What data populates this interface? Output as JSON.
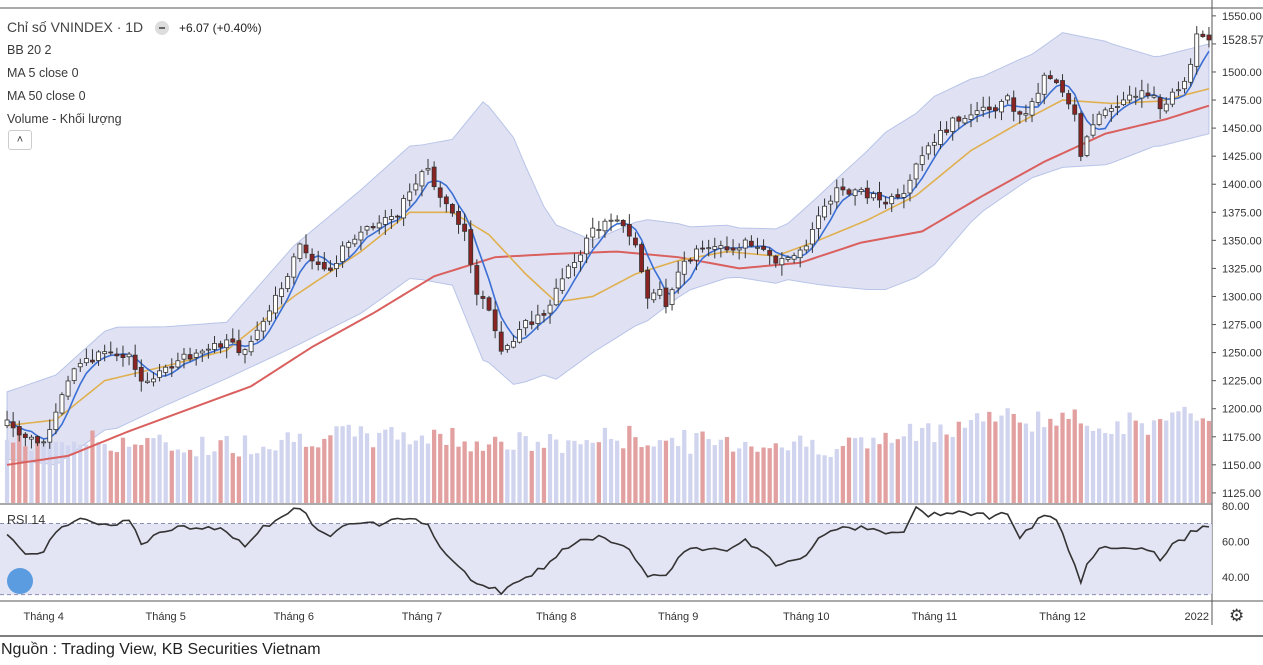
{
  "header": {
    "title": "Chỉ số VNINDEX · 1D",
    "change": "+6.07 (+0.40%)",
    "legend_items": [
      "BB 20 2",
      "MA 5 close 0",
      "MA 50 close 0",
      "Volume - Khối lượng"
    ],
    "rsi_label": "RSI 14",
    "source": "Nguồn : Trading View, KB Securities Vietnam"
  },
  "colors": {
    "up_candle": "#ffffff",
    "down_candle": "#8b2323",
    "candle_border": "#333333",
    "ma5": "#3b6fd4",
    "ma20": "#e0b050",
    "ma50": "#d9605e",
    "bb_fill": "#d6d8ef",
    "bb_line": "#b8c4e8",
    "vol_up": "#d0d4ee",
    "vol_down": "#e2a0a0",
    "rsi_line": "#333333",
    "rsi_fill": "#dfe0f2"
  },
  "icons": [
    "chevron-up-icon",
    "minus-dot-icon",
    "tradingview-logo-icon",
    "gear-icon"
  ],
  "chart_data": {
    "type": "candlestick",
    "title": "Chỉ số VNINDEX · 1D",
    "price_axis": {
      "ticks": [
        1125,
        1150,
        1175,
        1200,
        1225,
        1250,
        1275,
        1300,
        1325,
        1350,
        1375,
        1400,
        1425,
        1450,
        1475,
        1500,
        1525,
        1550
      ],
      "tick_labels": [
        "1125.00",
        "1150.00",
        "1175.00",
        "1200.00",
        "1225.00",
        "1250.00",
        "1275.00",
        "1300.00",
        "1325.00",
        "1350.00",
        "1375.00",
        "1400.00",
        "1425.00",
        "1450.00",
        "1475.00",
        "1500.00",
        "1528.57",
        "1550.00"
      ],
      "range": [
        1116,
        1557
      ],
      "last_price_label": "1528.57",
      "last_price": 1528.57
    },
    "rsi_axis": {
      "ticks": [
        40,
        60,
        80
      ],
      "tick_labels": [
        "40.00",
        "60.00",
        "80.00"
      ],
      "range": [
        27,
        81
      ],
      "bands": [
        30,
        70
      ]
    },
    "x_axis": {
      "labels": [
        "Tháng 4",
        "Tháng 5",
        "Tháng 6",
        "Tháng 7",
        "Tháng 8",
        "Tháng 9",
        "Tháng 10",
        "Tháng 11",
        "Tháng 12",
        "2022"
      ],
      "label_index": [
        6,
        26,
        47,
        68,
        90,
        110,
        131,
        152,
        173,
        195
      ]
    },
    "n_bars": 198,
    "anchors": {
      "close": [
        [
          0,
          1190
        ],
        [
          3,
          1175
        ],
        [
          6,
          1170
        ],
        [
          9,
          1215
        ],
        [
          12,
          1240
        ],
        [
          16,
          1250
        ],
        [
          20,
          1245
        ],
        [
          22,
          1225
        ],
        [
          25,
          1230
        ],
        [
          28,
          1245
        ],
        [
          31,
          1250
        ],
        [
          34,
          1255
        ],
        [
          36,
          1260
        ],
        [
          39,
          1250
        ],
        [
          42,
          1280
        ],
        [
          45,
          1310
        ],
        [
          48,
          1345
        ],
        [
          51,
          1330
        ],
        [
          53,
          1320
        ],
        [
          55,
          1345
        ],
        [
          58,
          1355
        ],
        [
          61,
          1365
        ],
        [
          64,
          1375
        ],
        [
          67,
          1400
        ],
        [
          69,
          1415
        ],
        [
          71,
          1385
        ],
        [
          73,
          1375
        ],
        [
          75,
          1360
        ],
        [
          77,
          1300
        ],
        [
          79,
          1290
        ],
        [
          81,
          1255
        ],
        [
          83,
          1260
        ],
        [
          85,
          1275
        ],
        [
          88,
          1285
        ],
        [
          91,
          1315
        ],
        [
          94,
          1340
        ],
        [
          96,
          1360
        ],
        [
          98,
          1365
        ],
        [
          101,
          1365
        ],
        [
          103,
          1345
        ],
        [
          105,
          1300
        ],
        [
          107,
          1305
        ],
        [
          108,
          1295
        ],
        [
          110,
          1325
        ],
        [
          112,
          1335
        ],
        [
          115,
          1345
        ],
        [
          118,
          1340
        ],
        [
          121,
          1350
        ],
        [
          124,
          1345
        ],
        [
          126,
          1330
        ],
        [
          128,
          1335
        ],
        [
          131,
          1345
        ],
        [
          133,
          1370
        ],
        [
          136,
          1395
        ],
        [
          138,
          1395
        ],
        [
          141,
          1390
        ],
        [
          144,
          1385
        ],
        [
          147,
          1395
        ],
        [
          149,
          1420
        ],
        [
          151,
          1435
        ],
        [
          153,
          1445
        ],
        [
          155,
          1455
        ],
        [
          158,
          1465
        ],
        [
          161,
          1465
        ],
        [
          164,
          1475
        ],
        [
          166,
          1460
        ],
        [
          168,
          1470
        ],
        [
          170,
          1495
        ],
        [
          172,
          1490
        ],
        [
          173,
          1480
        ],
        [
          174,
          1470
        ],
        [
          175,
          1460
        ],
        [
          176,
          1425
        ],
        [
          177,
          1445
        ],
        [
          179,
          1465
        ],
        [
          181,
          1470
        ],
        [
          183,
          1475
        ],
        [
          186,
          1480
        ],
        [
          188,
          1478
        ],
        [
          189,
          1465
        ],
        [
          191,
          1480
        ],
        [
          193,
          1490
        ],
        [
          195,
          1530
        ],
        [
          197,
          1528.57
        ]
      ],
      "ma20": [
        [
          0,
          1185
        ],
        [
          8,
          1190
        ],
        [
          16,
          1225
        ],
        [
          26,
          1238
        ],
        [
          36,
          1252
        ],
        [
          47,
          1300
        ],
        [
          58,
          1340
        ],
        [
          66,
          1375
        ],
        [
          73,
          1375
        ],
        [
          79,
          1355
        ],
        [
          85,
          1320
        ],
        [
          90,
          1295
        ],
        [
          96,
          1300
        ],
        [
          103,
          1320
        ],
        [
          110,
          1332
        ],
        [
          118,
          1340
        ],
        [
          126,
          1336
        ],
        [
          133,
          1350
        ],
        [
          141,
          1368
        ],
        [
          149,
          1390
        ],
        [
          158,
          1430
        ],
        [
          166,
          1455
        ],
        [
          173,
          1475
        ],
        [
          181,
          1472
        ],
        [
          189,
          1474
        ],
        [
          197,
          1485
        ]
      ],
      "ma50": [
        [
          0,
          1150
        ],
        [
          10,
          1158
        ],
        [
          20,
          1180
        ],
        [
          30,
          1200
        ],
        [
          40,
          1220
        ],
        [
          50,
          1255
        ],
        [
          60,
          1285
        ],
        [
          70,
          1318
        ],
        [
          80,
          1335
        ],
        [
          90,
          1338
        ],
        [
          100,
          1340
        ],
        [
          110,
          1335
        ],
        [
          120,
          1325
        ],
        [
          130,
          1330
        ],
        [
          140,
          1348
        ],
        [
          150,
          1358
        ],
        [
          160,
          1390
        ],
        [
          170,
          1420
        ],
        [
          180,
          1445
        ],
        [
          190,
          1458
        ],
        [
          197,
          1470
        ]
      ],
      "bb_width": [
        [
          0,
          30
        ],
        [
          8,
          40
        ],
        [
          18,
          45
        ],
        [
          26,
          35
        ],
        [
          36,
          25
        ],
        [
          47,
          45
        ],
        [
          58,
          55
        ],
        [
          68,
          60
        ],
        [
          73,
          65
        ],
        [
          78,
          115
        ],
        [
          83,
          110
        ],
        [
          88,
          75
        ],
        [
          96,
          50
        ],
        [
          105,
          45
        ],
        [
          112,
          28
        ],
        [
          120,
          22
        ],
        [
          128,
          25
        ],
        [
          136,
          48
        ],
        [
          144,
          70
        ],
        [
          152,
          75
        ],
        [
          160,
          60
        ],
        [
          168,
          55
        ],
        [
          173,
          60
        ],
        [
          180,
          55
        ],
        [
          188,
          40
        ],
        [
          197,
          40
        ]
      ],
      "volume": [
        [
          0,
          1171
        ],
        [
          10,
          1172
        ],
        [
          20,
          1170
        ],
        [
          28,
          1166
        ],
        [
          38,
          1168
        ],
        [
          50,
          1176
        ],
        [
          60,
          1175
        ],
        [
          70,
          1176
        ],
        [
          80,
          1170
        ],
        [
          90,
          1168
        ],
        [
          100,
          1175
        ],
        [
          110,
          1171
        ],
        [
          120,
          1170
        ],
        [
          130,
          1168
        ],
        [
          140,
          1168
        ],
        [
          150,
          1178
        ],
        [
          160,
          1193
        ],
        [
          170,
          1190
        ],
        [
          180,
          1187
        ],
        [
          190,
          1186
        ],
        [
          197,
          1198
        ]
      ],
      "rsi": [
        [
          0,
          65
        ],
        [
          3,
          52
        ],
        [
          6,
          55
        ],
        [
          9,
          68
        ],
        [
          12,
          74
        ],
        [
          16,
          69
        ],
        [
          20,
          72
        ],
        [
          22,
          59
        ],
        [
          25,
          64
        ],
        [
          28,
          68
        ],
        [
          31,
          66
        ],
        [
          34,
          68
        ],
        [
          36,
          66
        ],
        [
          39,
          58
        ],
        [
          42,
          68
        ],
        [
          45,
          74
        ],
        [
          48,
          79
        ],
        [
          51,
          66
        ],
        [
          53,
          63
        ],
        [
          55,
          68
        ],
        [
          58,
          70
        ],
        [
          61,
          69
        ],
        [
          64,
          73
        ],
        [
          67,
          74
        ],
        [
          69,
          69
        ],
        [
          71,
          57
        ],
        [
          73,
          49
        ],
        [
          75,
          43
        ],
        [
          77,
          36
        ],
        [
          79,
          35
        ],
        [
          81,
          31
        ],
        [
          83,
          36
        ],
        [
          85,
          40
        ],
        [
          88,
          45
        ],
        [
          91,
          55
        ],
        [
          94,
          60
        ],
        [
          96,
          62
        ],
        [
          98,
          62
        ],
        [
          101,
          58
        ],
        [
          103,
          51
        ],
        [
          105,
          40
        ],
        [
          107,
          42
        ],
        [
          108,
          41
        ],
        [
          110,
          51
        ],
        [
          112,
          55
        ],
        [
          115,
          57
        ],
        [
          118,
          56
        ],
        [
          121,
          60
        ],
        [
          124,
          55
        ],
        [
          126,
          45
        ],
        [
          128,
          48
        ],
        [
          131,
          53
        ],
        [
          133,
          62
        ],
        [
          136,
          68
        ],
        [
          138,
          68
        ],
        [
          141,
          67
        ],
        [
          144,
          64
        ],
        [
          147,
          66
        ],
        [
          149,
          78
        ],
        [
          151,
          75
        ],
        [
          153,
          76
        ],
        [
          155,
          77
        ],
        [
          158,
          76
        ],
        [
          161,
          74
        ],
        [
          164,
          76
        ],
        [
          166,
          62
        ],
        [
          168,
          68
        ],
        [
          170,
          75
        ],
        [
          172,
          71
        ],
        [
          173,
          64
        ],
        [
          174,
          56
        ],
        [
          175,
          48
        ],
        [
          176,
          37
        ],
        [
          177,
          48
        ],
        [
          179,
          56
        ],
        [
          181,
          57
        ],
        [
          183,
          56
        ],
        [
          186,
          57
        ],
        [
          188,
          55
        ],
        [
          189,
          48
        ],
        [
          191,
          58
        ],
        [
          193,
          62
        ],
        [
          195,
          67
        ],
        [
          197,
          69
        ]
      ]
    }
  }
}
